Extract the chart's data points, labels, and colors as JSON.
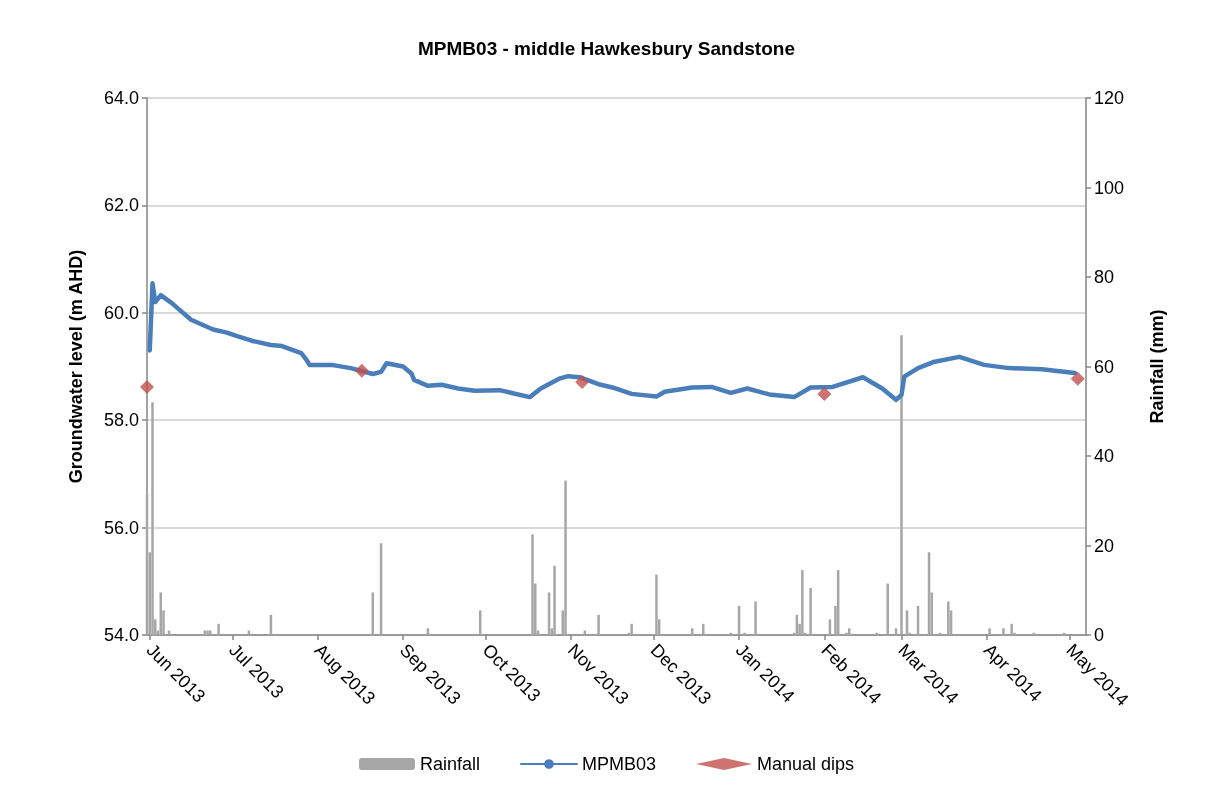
{
  "chart_data": {
    "type": "line",
    "title": "MPMB03 - middle Hawkesbury Sandstone",
    "ylabel": "Groundwater level (m AHD)",
    "y2label": "Rainfall (mm)",
    "xlim": [
      "2013-05-31",
      "2014-05-07"
    ],
    "xticks": [
      {
        "value": "2013-06-01",
        "label": "Jun 2013"
      },
      {
        "value": "2013-07-01",
        "label": "Jul 2013"
      },
      {
        "value": "2013-08-01",
        "label": "Aug 2013"
      },
      {
        "value": "2013-09-01",
        "label": "Sep 2013"
      },
      {
        "value": "2013-10-01",
        "label": "Oct 2013"
      },
      {
        "value": "2013-11-01",
        "label": "Nov 2013"
      },
      {
        "value": "2013-12-01",
        "label": "Dec 2013"
      },
      {
        "value": "2014-01-01",
        "label": "Jan 2014"
      },
      {
        "value": "2014-02-01",
        "label": "Feb 2014"
      },
      {
        "value": "2014-03-01",
        "label": "Mar 2014"
      },
      {
        "value": "2014-04-01",
        "label": "Apr 2014"
      },
      {
        "value": "2014-05-01",
        "label": "May 2014"
      }
    ],
    "ylim": [
      54,
      64
    ],
    "yticks": [
      {
        "value": 54,
        "label": "54.0"
      },
      {
        "value": 56,
        "label": "56.0"
      },
      {
        "value": 58,
        "label": "58.0"
      },
      {
        "value": 60,
        "label": "60.0"
      },
      {
        "value": 62,
        "label": "62.0"
      },
      {
        "value": 64,
        "label": "64.0"
      }
    ],
    "y2lim": [
      0,
      120
    ],
    "y2ticks": [
      0,
      20,
      40,
      60,
      80,
      100,
      120
    ],
    "grid": "y",
    "legend": "bottom",
    "series": [
      {
        "name": "Rainfall",
        "type": "bar",
        "axis": "y2",
        "color": "#a6a6a6",
        "x": [
          "2013-05-31",
          "2013-06-01",
          "2013-06-02",
          "2013-06-03",
          "2013-06-04",
          "2013-06-05",
          "2013-06-06",
          "2013-06-08",
          "2013-06-21",
          "2013-06-22",
          "2013-06-23",
          "2013-06-26",
          "2013-07-07",
          "2013-07-15",
          "2013-08-21",
          "2013-08-24",
          "2013-09-10",
          "2013-09-29",
          "2013-10-18",
          "2013-10-19",
          "2013-10-20",
          "2013-10-24",
          "2013-10-25",
          "2013-10-26",
          "2013-10-29",
          "2013-10-30",
          "2013-11-06",
          "2013-11-11",
          "2013-11-22",
          "2013-11-23",
          "2013-12-02",
          "2013-12-03",
          "2013-12-15",
          "2013-12-19",
          "2013-12-29",
          "2014-01-01",
          "2014-01-03",
          "2014-01-07",
          "2014-01-21",
          "2014-01-22",
          "2014-01-23",
          "2014-01-24",
          "2014-01-25",
          "2014-01-27",
          "2014-02-03",
          "2014-02-05",
          "2014-02-06",
          "2014-02-09",
          "2014-02-10",
          "2014-02-20",
          "2014-02-24",
          "2014-02-27",
          "2014-03-01",
          "2014-03-03",
          "2014-03-04",
          "2014-03-07",
          "2014-03-11",
          "2014-03-12",
          "2014-03-15",
          "2014-03-18",
          "2014-03-19",
          "2014-04-02",
          "2014-04-07",
          "2014-04-10",
          "2014-04-11",
          "2014-04-18",
          "2014-04-29"
        ],
        "values": [
          31.5,
          18.5,
          52,
          3.5,
          1,
          9.5,
          5.5,
          1,
          1,
          1,
          1,
          2.5,
          1,
          4.5,
          9.5,
          20.5,
          1.5,
          5.5,
          22.5,
          11.5,
          1,
          9.5,
          1.5,
          15.5,
          5.5,
          34.5,
          1,
          4.5,
          0.5,
          2.5,
          13.5,
          3.5,
          1.5,
          2.5,
          0.5,
          6.5,
          0.5,
          7.5,
          0.5,
          4.5,
          2.5,
          14.5,
          0.5,
          10.5,
          3.5,
          6.5,
          14.5,
          0.5,
          1.5,
          0.5,
          11.5,
          1.5,
          67,
          5.5,
          0.5,
          6.5,
          18.5,
          9.5,
          0.5,
          7.5,
          5.5,
          1.5,
          1.5,
          2.5,
          0.5,
          0.5,
          0.5
        ]
      },
      {
        "name": "MPMB03",
        "color": "#4a7ebb",
        "marker": "none",
        "x": [
          "2013-06-01",
          "2013-06-02",
          "2013-06-03",
          "2013-06-05",
          "2013-06-09",
          "2013-06-16",
          "2013-06-24",
          "2013-06-29",
          "2013-07-03",
          "2013-07-08",
          "2013-07-15",
          "2013-07-19",
          "2013-07-26",
          "2013-07-28",
          "2013-07-29",
          "2013-08-06",
          "2013-08-13",
          "2013-08-21",
          "2013-08-24",
          "2013-08-26",
          "2013-09-01",
          "2013-09-04",
          "2013-09-05",
          "2013-09-10",
          "2013-09-15",
          "2013-09-21",
          "2013-09-27",
          "2013-10-06",
          "2013-10-17",
          "2013-10-21",
          "2013-10-28",
          "2013-10-31",
          "2013-11-04",
          "2013-11-11",
          "2013-11-16",
          "2013-11-23",
          "2013-12-02",
          "2013-12-05",
          "2013-12-15",
          "2013-12-22",
          "2013-12-29",
          "2014-01-04",
          "2014-01-12",
          "2014-01-21",
          "2014-01-27",
          "2014-02-04",
          "2014-02-15",
          "2014-02-22",
          "2014-02-27",
          "2014-03-01",
          "2014-03-02",
          "2014-03-07",
          "2014-03-13",
          "2014-03-22",
          "2014-03-31",
          "2014-04-09",
          "2014-04-21",
          "2014-05-03"
        ],
        "values": [
          59.3,
          60.55,
          60.2,
          60.33,
          60.18,
          59.87,
          59.69,
          59.63,
          59.56,
          59.48,
          59.4,
          59.38,
          59.25,
          59.12,
          59.03,
          59.03,
          58.97,
          58.86,
          58.9,
          59.06,
          59.0,
          58.87,
          58.75,
          58.64,
          58.66,
          58.59,
          58.55,
          58.56,
          58.43,
          58.59,
          58.78,
          58.82,
          58.8,
          58.67,
          58.61,
          58.49,
          58.44,
          58.53,
          58.61,
          58.62,
          58.51,
          58.59,
          58.48,
          58.43,
          58.61,
          58.62,
          58.8,
          58.59,
          58.38,
          58.47,
          58.81,
          58.97,
          59.09,
          59.18,
          59.03,
          58.97,
          58.95,
          58.88
        ]
      },
      {
        "name": "Manual dips",
        "type": "scatter",
        "color": "#c0504d",
        "marker": "diamond",
        "x": [
          "2013-05-31",
          "2013-08-17",
          "2013-11-05",
          "2014-02-01",
          "2014-05-04"
        ],
        "values": [
          58.62,
          58.92,
          58.71,
          58.49,
          58.77
        ]
      }
    ]
  }
}
